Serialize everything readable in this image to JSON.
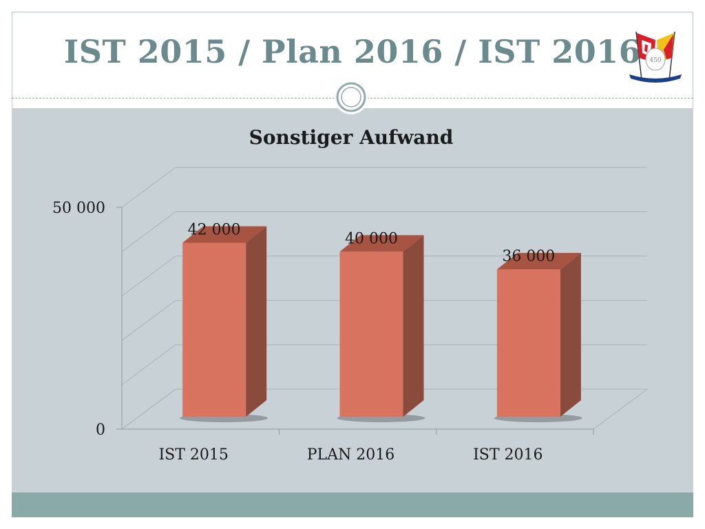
{
  "slide": {
    "title": "IST 2015 / Plan 2016 / IST 2016"
  },
  "colors": {
    "title": "#6a8a8e",
    "content_background": "#c7d1d6",
    "footer_bar": "#8aaaa9",
    "bar_front": "#d87360",
    "bar_side": "#8a4a3c",
    "bar_top": "#a85442"
  },
  "icons": {
    "logo": "flags-crest-icon",
    "divider_ornament": "ring-icon"
  },
  "chart_data": {
    "type": "bar",
    "title": "Sonstiger Aufwand",
    "categories": [
      "IST 2015",
      "PLAN 2016",
      "IST 2016"
    ],
    "values": [
      42000,
      40000,
      36000
    ],
    "value_labels": [
      "42 000",
      "40 000",
      "36 000"
    ],
    "ylim": [
      0,
      50000
    ],
    "yticks": [
      0,
      50000
    ],
    "ytick_labels": [
      "0",
      "50 000"
    ],
    "xlabel": "",
    "ylabel": "",
    "grid": true,
    "style": "3d-column"
  }
}
